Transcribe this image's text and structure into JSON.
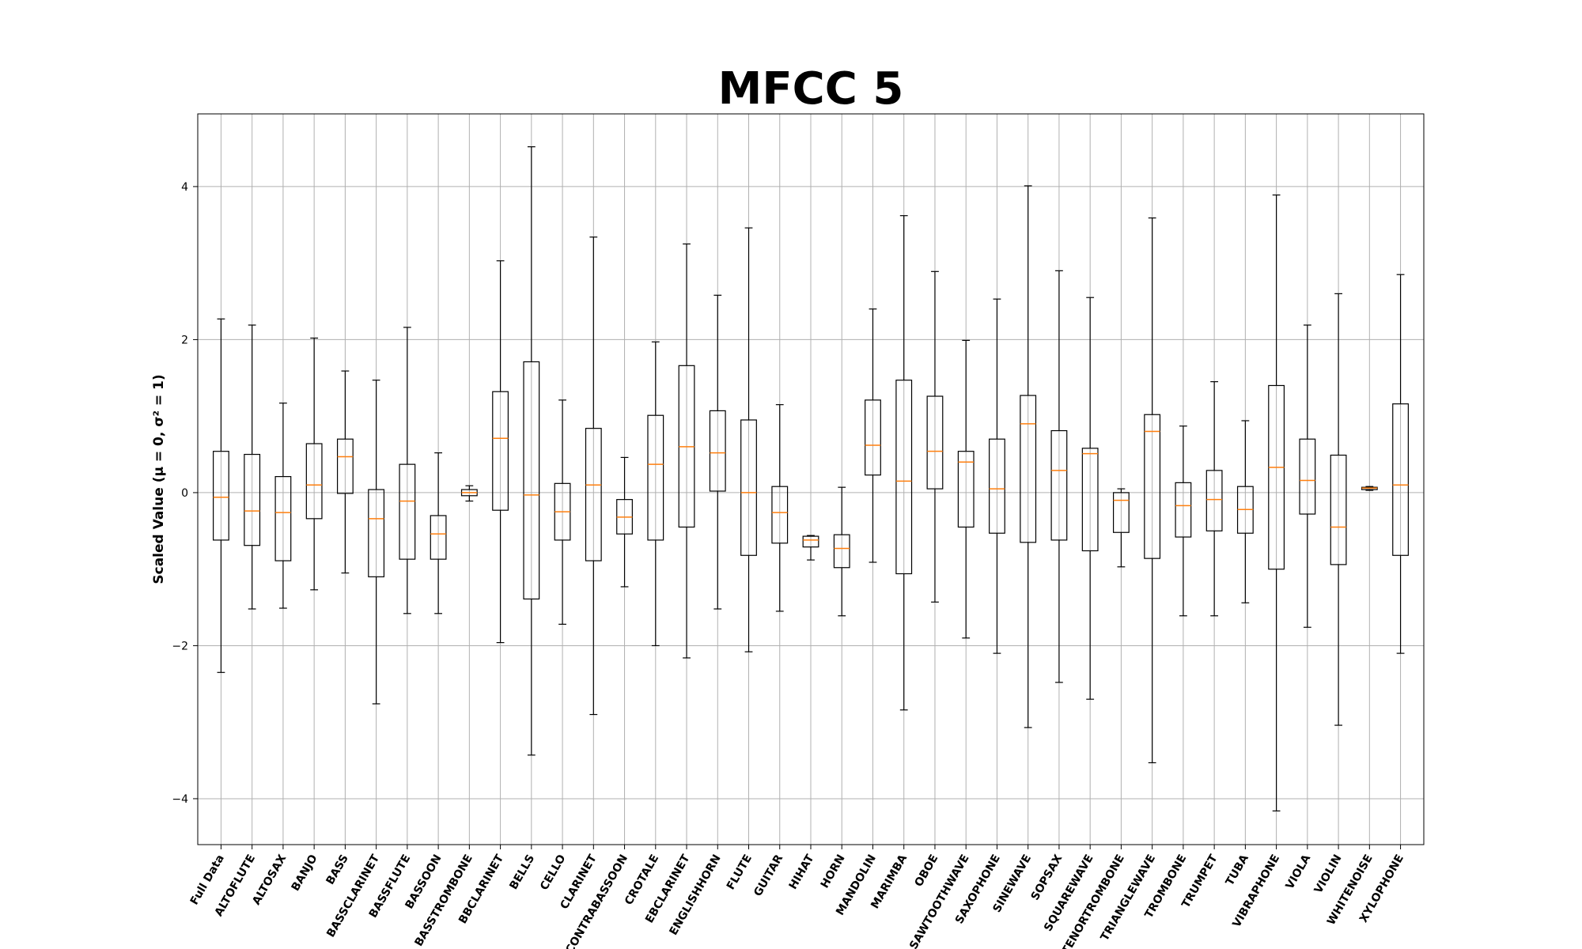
{
  "chart_data": {
    "type": "boxplot",
    "title": "MFCC 5",
    "xlabel": "",
    "ylabel": "Scaled Value (μ = 0, σ² = 1)",
    "ylim": [
      -4.6,
      4.95
    ],
    "yticks": [
      -4,
      -2,
      0,
      2,
      4
    ],
    "grid": true,
    "colors": {
      "box": "#000000",
      "median": "#ff7f0e",
      "grid": "#b0b0b0"
    },
    "categories": [
      "Full Data",
      "ALTOFLUTE",
      "ALTOSAX",
      "BANJO",
      "BASS",
      "BASSCLARINET",
      "BASSFLUTE",
      "BASSOON",
      "BASSTROMBONE",
      "BBCLARINET",
      "BELLS",
      "CELLO",
      "CLARINET",
      "CONTRABASSOON",
      "CROTALE",
      "EBCLARINET",
      "ENGLISHHORN",
      "FLUTE",
      "GUITAR",
      "HIHAT",
      "HORN",
      "MANDOLIN",
      "MARIMBA",
      "OBOE",
      "SAWTOOTHWAVE",
      "SAXOPHONE",
      "SINEWAVE",
      "SOPSAX",
      "SQUAREWAVE",
      "TENORTROMBONE",
      "TRIANGLEWAVE",
      "TROMBONE",
      "TRUMPET",
      "TUBA",
      "VIBRAPHONE",
      "VIOLA",
      "VIOLIN",
      "WHITENOISE",
      "XYLOPHONE"
    ],
    "boxes": [
      {
        "whislo": -2.35,
        "q1": -0.62,
        "med": -0.06,
        "q3": 0.54,
        "whishi": 2.27
      },
      {
        "whislo": -1.52,
        "q1": -0.69,
        "med": -0.24,
        "q3": 0.5,
        "whishi": 2.19
      },
      {
        "whislo": -1.51,
        "q1": -0.89,
        "med": -0.26,
        "q3": 0.21,
        "whishi": 1.17
      },
      {
        "whislo": -1.27,
        "q1": -0.34,
        "med": 0.1,
        "q3": 0.64,
        "whishi": 2.02
      },
      {
        "whislo": -1.05,
        "q1": -0.01,
        "med": 0.47,
        "q3": 0.7,
        "whishi": 1.59
      },
      {
        "whislo": -2.76,
        "q1": -1.1,
        "med": -0.34,
        "q3": 0.04,
        "whishi": 1.47
      },
      {
        "whislo": -1.58,
        "q1": -0.87,
        "med": -0.11,
        "q3": 0.37,
        "whishi": 2.16
      },
      {
        "whislo": -1.58,
        "q1": -0.87,
        "med": -0.54,
        "q3": -0.3,
        "whishi": 0.52
      },
      {
        "whislo": -0.11,
        "q1": -0.04,
        "med": 0.0,
        "q3": 0.04,
        "whishi": 0.09
      },
      {
        "whislo": -1.96,
        "q1": -0.23,
        "med": 0.71,
        "q3": 1.32,
        "whishi": 3.03
      },
      {
        "whislo": -3.43,
        "q1": -1.39,
        "med": -0.03,
        "q3": 1.71,
        "whishi": 4.52
      },
      {
        "whislo": -1.72,
        "q1": -0.62,
        "med": -0.25,
        "q3": 0.12,
        "whishi": 1.21
      },
      {
        "whislo": -2.9,
        "q1": -0.89,
        "med": 0.1,
        "q3": 0.84,
        "whishi": 3.34
      },
      {
        "whislo": -1.23,
        "q1": -0.54,
        "med": -0.32,
        "q3": -0.09,
        "whishi": 0.46
      },
      {
        "whislo": -2.0,
        "q1": -0.62,
        "med": 0.37,
        "q3": 1.01,
        "whishi": 1.97
      },
      {
        "whislo": -2.16,
        "q1": -0.45,
        "med": 0.6,
        "q3": 1.66,
        "whishi": 3.25
      },
      {
        "whislo": -1.52,
        "q1": 0.02,
        "med": 0.52,
        "q3": 1.07,
        "whishi": 2.58
      },
      {
        "whislo": -2.08,
        "q1": -0.82,
        "med": 0.0,
        "q3": 0.95,
        "whishi": 3.46
      },
      {
        "whislo": -1.55,
        "q1": -0.66,
        "med": -0.26,
        "q3": 0.08,
        "whishi": 1.15
      },
      {
        "whislo": -0.88,
        "q1": -0.71,
        "med": -0.62,
        "q3": -0.57,
        "whishi": -0.56
      },
      {
        "whislo": -1.61,
        "q1": -0.98,
        "med": -0.73,
        "q3": -0.55,
        "whishi": 0.07
      },
      {
        "whislo": -0.91,
        "q1": 0.23,
        "med": 0.62,
        "q3": 1.21,
        "whishi": 2.4
      },
      {
        "whislo": -2.84,
        "q1": -1.06,
        "med": 0.15,
        "q3": 1.47,
        "whishi": 3.62
      },
      {
        "whislo": -1.43,
        "q1": 0.05,
        "med": 0.54,
        "q3": 1.26,
        "whishi": 2.89
      },
      {
        "whislo": -1.9,
        "q1": -0.45,
        "med": 0.4,
        "q3": 0.54,
        "whishi": 1.99
      },
      {
        "whislo": -2.1,
        "q1": -0.53,
        "med": 0.05,
        "q3": 0.7,
        "whishi": 2.53
      },
      {
        "whislo": -3.07,
        "q1": -0.65,
        "med": 0.9,
        "q3": 1.27,
        "whishi": 4.01
      },
      {
        "whislo": -2.48,
        "q1": -0.62,
        "med": 0.29,
        "q3": 0.81,
        "whishi": 2.9
      },
      {
        "whislo": -2.7,
        "q1": -0.76,
        "med": 0.51,
        "q3": 0.58,
        "whishi": 2.55
      },
      {
        "whislo": -0.97,
        "q1": -0.52,
        "med": -0.1,
        "q3": 0.0,
        "whishi": 0.05
      },
      {
        "whislo": -3.53,
        "q1": -0.86,
        "med": 0.8,
        "q3": 1.02,
        "whishi": 3.59
      },
      {
        "whislo": -1.61,
        "q1": -0.58,
        "med": -0.17,
        "q3": 0.13,
        "whishi": 0.87
      },
      {
        "whislo": -1.61,
        "q1": -0.5,
        "med": -0.09,
        "q3": 0.29,
        "whishi": 1.45
      },
      {
        "whislo": -1.44,
        "q1": -0.53,
        "med": -0.22,
        "q3": 0.08,
        "whishi": 0.94
      },
      {
        "whislo": -4.16,
        "q1": -1.0,
        "med": 0.33,
        "q3": 1.4,
        "whishi": 3.89
      },
      {
        "whislo": -1.76,
        "q1": -0.28,
        "med": 0.16,
        "q3": 0.7,
        "whishi": 2.19
      },
      {
        "whislo": -3.04,
        "q1": -0.94,
        "med": -0.45,
        "q3": 0.49,
        "whishi": 2.6
      },
      {
        "whislo": 0.03,
        "q1": 0.04,
        "med": 0.06,
        "q3": 0.07,
        "whishi": 0.08
      },
      {
        "whislo": -2.1,
        "q1": -0.82,
        "med": 0.1,
        "q3": 1.16,
        "whishi": 2.85
      }
    ]
  }
}
